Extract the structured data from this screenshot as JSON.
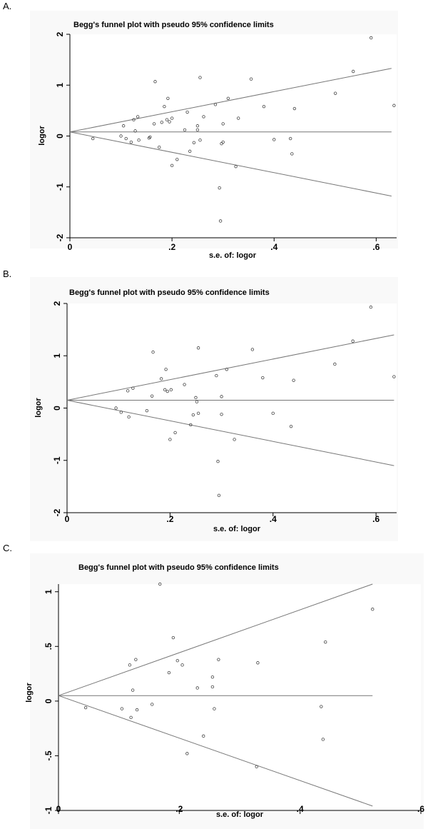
{
  "colors": {
    "background": "#f9f9f9",
    "axis": "#000000",
    "line": "#777777",
    "point": "#444444"
  },
  "chart_data": [
    {
      "panel": "A.",
      "type": "scatter",
      "title": "Begg's funnel plot with pseudo 95% confidence limits",
      "xlabel": "s.e. of: logor",
      "ylabel": "logor",
      "xlim": [
        0,
        0.64
      ],
      "ylim": [
        -2,
        2
      ],
      "xticks": [
        0,
        0.2,
        0.4,
        0.6
      ],
      "xtick_labels": [
        "0",
        ".2",
        ".4",
        ".6"
      ],
      "yticks": [
        -2,
        -1,
        0,
        1,
        2
      ],
      "ytick_labels": [
        "-2",
        "-1",
        "0",
        "1",
        "2"
      ],
      "pooled": 0.08,
      "funnel_end": {
        "x": 0.63,
        "upper": 1.33,
        "lower": -1.18
      },
      "points": [
        [
          0.045,
          -0.05
        ],
        [
          0.1,
          0.0
        ],
        [
          0.105,
          0.2
        ],
        [
          0.11,
          -0.05
        ],
        [
          0.12,
          -0.12
        ],
        [
          0.125,
          0.32
        ],
        [
          0.128,
          0.1
        ],
        [
          0.133,
          0.38
        ],
        [
          0.135,
          -0.08
        ],
        [
          0.155,
          -0.04
        ],
        [
          0.157,
          -0.02
        ],
        [
          0.165,
          0.24
        ],
        [
          0.167,
          1.07
        ],
        [
          0.175,
          -0.22
        ],
        [
          0.18,
          0.27
        ],
        [
          0.185,
          0.58
        ],
        [
          0.19,
          0.32
        ],
        [
          0.192,
          0.74
        ],
        [
          0.195,
          0.28
        ],
        [
          0.2,
          -0.58
        ],
        [
          0.2,
          0.35
        ],
        [
          0.21,
          -0.46
        ],
        [
          0.225,
          0.12
        ],
        [
          0.23,
          0.47
        ],
        [
          0.235,
          -0.3
        ],
        [
          0.243,
          -0.13
        ],
        [
          0.25,
          0.2
        ],
        [
          0.25,
          0.12
        ],
        [
          0.255,
          -0.08
        ],
        [
          0.255,
          1.15
        ],
        [
          0.262,
          0.38
        ],
        [
          0.285,
          0.62
        ],
        [
          0.293,
          -1.02
        ],
        [
          0.295,
          -1.67
        ],
        [
          0.297,
          -0.15
        ],
        [
          0.3,
          0.24
        ],
        [
          0.3,
          -0.12
        ],
        [
          0.31,
          0.74
        ],
        [
          0.325,
          -0.6
        ],
        [
          0.33,
          0.35
        ],
        [
          0.355,
          1.12
        ],
        [
          0.38,
          0.58
        ],
        [
          0.4,
          -0.07
        ],
        [
          0.432,
          -0.05
        ],
        [
          0.435,
          -0.35
        ],
        [
          0.44,
          0.54
        ],
        [
          0.52,
          0.84
        ],
        [
          0.555,
          1.27
        ],
        [
          0.59,
          1.93
        ],
        [
          0.635,
          0.6
        ]
      ]
    },
    {
      "panel": "B.",
      "type": "scatter",
      "title": "Begg's funnel plot with pseudo 95% confidence limits",
      "xlabel": "s.e. of: logor",
      "ylabel": "logor",
      "xlim": [
        0,
        0.64
      ],
      "ylim": [
        -2,
        2
      ],
      "xticks": [
        0,
        0.2,
        0.4,
        0.6
      ],
      "xtick_labels": [
        "0",
        ".2",
        ".4",
        ".6"
      ],
      "yticks": [
        -2,
        -1,
        0,
        1,
        2
      ],
      "ytick_labels": [
        "-2",
        "-1",
        "0",
        "1",
        "2"
      ],
      "pooled": 0.15,
      "funnel_end": {
        "x": 0.635,
        "upper": 1.4,
        "lower": -1.1
      },
      "points": [
        [
          0.095,
          0.0
        ],
        [
          0.105,
          -0.08
        ],
        [
          0.118,
          0.33
        ],
        [
          0.12,
          -0.17
        ],
        [
          0.128,
          0.38
        ],
        [
          0.155,
          -0.05
        ],
        [
          0.165,
          0.23
        ],
        [
          0.167,
          1.07
        ],
        [
          0.183,
          0.56
        ],
        [
          0.19,
          0.35
        ],
        [
          0.192,
          0.74
        ],
        [
          0.195,
          0.32
        ],
        [
          0.2,
          -0.6
        ],
        [
          0.202,
          0.35
        ],
        [
          0.21,
          -0.47
        ],
        [
          0.228,
          0.45
        ],
        [
          0.24,
          -0.32
        ],
        [
          0.245,
          -0.13
        ],
        [
          0.25,
          0.2
        ],
        [
          0.252,
          0.12
        ],
        [
          0.255,
          1.15
        ],
        [
          0.255,
          -0.1
        ],
        [
          0.29,
          0.62
        ],
        [
          0.293,
          -1.02
        ],
        [
          0.295,
          -1.67
        ],
        [
          0.3,
          0.22
        ],
        [
          0.3,
          -0.12
        ],
        [
          0.31,
          0.74
        ],
        [
          0.325,
          -0.6
        ],
        [
          0.36,
          1.12
        ],
        [
          0.38,
          0.58
        ],
        [
          0.4,
          -0.1
        ],
        [
          0.435,
          -0.35
        ],
        [
          0.44,
          0.53
        ],
        [
          0.52,
          0.84
        ],
        [
          0.555,
          1.28
        ],
        [
          0.59,
          1.93
        ],
        [
          0.635,
          0.6
        ]
      ]
    },
    {
      "panel": "C.",
      "type": "scatter",
      "title": "Begg's funnel plot with pseudo 95% confidence limits",
      "xlabel": "s.e. of: logor",
      "ylabel": "logor",
      "xlim": [
        0,
        0.6
      ],
      "ylim": [
        -1,
        1.07
      ],
      "xticks": [
        0,
        0.2,
        0.4,
        0.6
      ],
      "xtick_labels": [
        "0",
        ".2",
        ".4",
        ".6"
      ],
      "yticks": [
        -1,
        -0.5,
        0,
        0.5,
        1
      ],
      "ytick_labels": [
        "-1",
        "-.5",
        "0",
        ".5",
        "1"
      ],
      "pooled": 0.05,
      "funnel_end": {
        "x": 0.52,
        "upper": 1.07,
        "lower": -0.96
      },
      "points": [
        [
          0.045,
          -0.06
        ],
        [
          0.105,
          -0.07
        ],
        [
          0.118,
          0.33
        ],
        [
          0.12,
          -0.15
        ],
        [
          0.123,
          0.1
        ],
        [
          0.128,
          0.38
        ],
        [
          0.13,
          -0.08
        ],
        [
          0.155,
          -0.03
        ],
        [
          0.168,
          1.07
        ],
        [
          0.183,
          0.26
        ],
        [
          0.19,
          0.58
        ],
        [
          0.197,
          0.37
        ],
        [
          0.205,
          0.33
        ],
        [
          0.213,
          -0.48
        ],
        [
          0.23,
          0.12
        ],
        [
          0.24,
          -0.32
        ],
        [
          0.255,
          0.22
        ],
        [
          0.255,
          0.13
        ],
        [
          0.258,
          -0.07
        ],
        [
          0.265,
          0.38
        ],
        [
          0.328,
          -0.6
        ],
        [
          0.33,
          0.35
        ],
        [
          0.435,
          -0.05
        ],
        [
          0.438,
          -0.35
        ],
        [
          0.442,
          0.54
        ],
        [
          0.52,
          0.84
        ]
      ]
    }
  ]
}
